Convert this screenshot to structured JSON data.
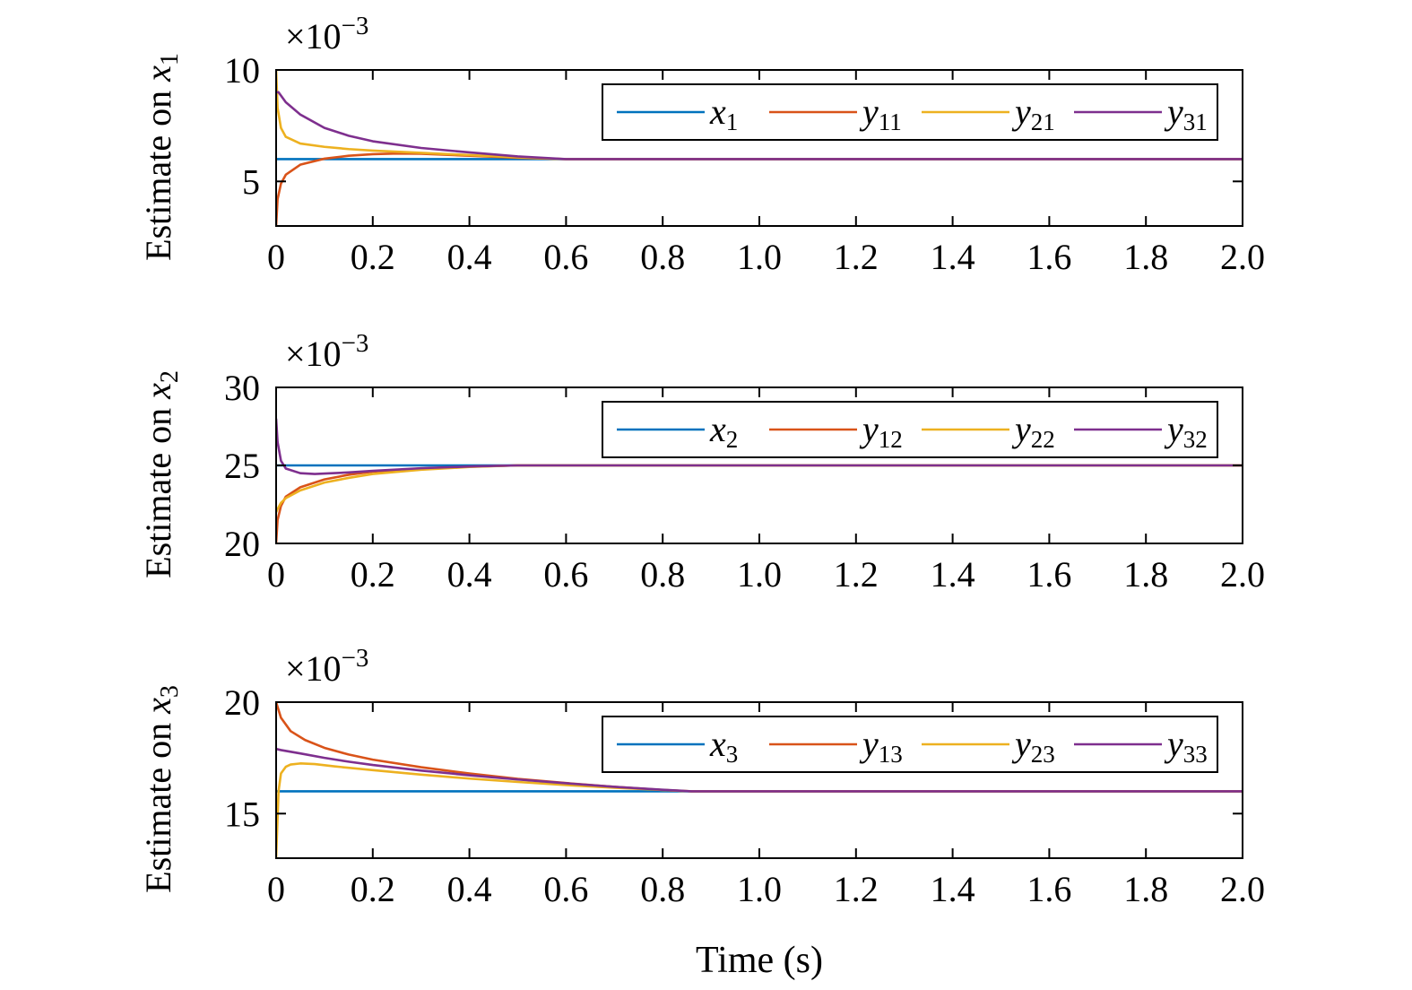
{
  "chart_data": [
    {
      "type": "line",
      "ylabel": "Estimate on",
      "ylabel_var": "x",
      "ylabel_sub": "1",
      "multiplier_base": "×10",
      "multiplier_exp": "−3",
      "xlim": [
        0,
        2.0
      ],
      "ylim": [
        3,
        10
      ],
      "xticks": [
        "0",
        "0.2",
        "0.4",
        "0.6",
        "0.8",
        "1.0",
        "1.2",
        "1.4",
        "1.6",
        "1.8",
        "2.0"
      ],
      "yticks": [
        {
          "value": 5,
          "label": "5"
        },
        {
          "value": 10,
          "label": "10"
        }
      ],
      "grid": false,
      "legend_position": "top-right",
      "series": [
        {
          "name": "x1",
          "var": "x",
          "sub": "1",
          "color": "#0072BD",
          "x": [
            0,
            0.01,
            2.0
          ],
          "y": [
            6,
            6,
            6
          ]
        },
        {
          "name": "y11",
          "var": "y",
          "sub": "11",
          "color": "#D95319",
          "x": [
            0,
            0.003,
            0.01,
            0.02,
            0.05,
            0.1,
            0.15,
            0.2,
            0.25,
            0.3,
            0.4,
            0.5,
            0.6,
            2.0
          ],
          "y": [
            3.0,
            4.2,
            4.9,
            5.3,
            5.75,
            6.02,
            6.15,
            6.22,
            6.25,
            6.24,
            6.15,
            6.06,
            6.0,
            6.0
          ]
        },
        {
          "name": "y21",
          "var": "y",
          "sub": "21",
          "color": "#EDB120",
          "x": [
            0,
            0.003,
            0.01,
            0.02,
            0.05,
            0.1,
            0.15,
            0.2,
            0.3,
            0.4,
            0.5,
            0.6,
            2.0
          ],
          "y": [
            10.0,
            8.3,
            7.4,
            7.0,
            6.7,
            6.55,
            6.45,
            6.38,
            6.28,
            6.18,
            6.08,
            6.0,
            6.0
          ]
        },
        {
          "name": "y31",
          "var": "y",
          "sub": "31",
          "color": "#7E2F8E",
          "x": [
            0,
            0.005,
            0.02,
            0.05,
            0.1,
            0.15,
            0.2,
            0.3,
            0.4,
            0.5,
            0.6,
            2.0
          ],
          "y": [
            9.0,
            9.0,
            8.55,
            8.0,
            7.4,
            7.05,
            6.8,
            6.5,
            6.3,
            6.12,
            6.0,
            6.0
          ]
        }
      ]
    },
    {
      "type": "line",
      "ylabel": "Estimate on",
      "ylabel_var": "x",
      "ylabel_sub": "2",
      "multiplier_base": "×10",
      "multiplier_exp": "−3",
      "xlim": [
        0,
        2.0
      ],
      "ylim": [
        20,
        30
      ],
      "xticks": [
        "0",
        "0.2",
        "0.4",
        "0.6",
        "0.8",
        "1.0",
        "1.2",
        "1.4",
        "1.6",
        "1.8",
        "2.0"
      ],
      "yticks": [
        {
          "value": 20,
          "label": "20"
        },
        {
          "value": 25,
          "label": "25"
        },
        {
          "value": 30,
          "label": "30"
        }
      ],
      "grid": false,
      "legend_position": "top-right",
      "series": [
        {
          "name": "x2",
          "var": "x",
          "sub": "2",
          "color": "#0072BD",
          "x": [
            0,
            0.01,
            2.0
          ],
          "y": [
            25,
            25,
            25
          ]
        },
        {
          "name": "y12",
          "var": "y",
          "sub": "12",
          "color": "#D95319",
          "x": [
            0,
            0.003,
            0.01,
            0.02,
            0.05,
            0.1,
            0.15,
            0.2,
            0.3,
            0.4,
            0.5,
            2.0
          ],
          "y": [
            20.0,
            21.5,
            22.4,
            23.0,
            23.6,
            24.1,
            24.4,
            24.6,
            24.8,
            24.92,
            25.0,
            25.0
          ]
        },
        {
          "name": "y22",
          "var": "y",
          "sub": "22",
          "color": "#EDB120",
          "x": [
            0,
            0.003,
            0.01,
            0.02,
            0.05,
            0.1,
            0.15,
            0.2,
            0.3,
            0.4,
            0.5,
            2.0
          ],
          "y": [
            22.0,
            22.2,
            22.6,
            22.9,
            23.4,
            23.9,
            24.2,
            24.45,
            24.72,
            24.9,
            25.0,
            25.0
          ]
        },
        {
          "name": "y32",
          "var": "y",
          "sub": "32",
          "color": "#7E2F8E",
          "x": [
            0,
            0.003,
            0.01,
            0.02,
            0.05,
            0.08,
            0.15,
            0.2,
            0.3,
            0.4,
            0.5,
            2.0
          ],
          "y": [
            28.0,
            26.5,
            25.3,
            24.8,
            24.5,
            24.45,
            24.55,
            24.65,
            24.82,
            24.93,
            25.0,
            25.0
          ]
        }
      ]
    },
    {
      "type": "line",
      "ylabel": "Estimate on",
      "ylabel_var": "x",
      "ylabel_sub": "3",
      "multiplier_base": "×10",
      "multiplier_exp": "−3",
      "xlim": [
        0,
        2.0
      ],
      "ylim": [
        13,
        20
      ],
      "xticks": [
        "0",
        "0.2",
        "0.4",
        "0.6",
        "0.8",
        "1.0",
        "1.2",
        "1.4",
        "1.6",
        "1.8",
        "2.0"
      ],
      "yticks": [
        {
          "value": 15,
          "label": "15"
        },
        {
          "value": 20,
          "label": "20"
        }
      ],
      "grid": false,
      "legend_position": "top-right",
      "series": [
        {
          "name": "x3",
          "var": "x",
          "sub": "3",
          "color": "#0072BD",
          "x": [
            0,
            0.01,
            2.0
          ],
          "y": [
            16,
            16,
            16
          ]
        },
        {
          "name": "y13",
          "var": "y",
          "sub": "13",
          "color": "#D95319",
          "x": [
            0,
            0.01,
            0.03,
            0.06,
            0.1,
            0.15,
            0.2,
            0.3,
            0.4,
            0.5,
            0.6,
            0.7,
            0.8,
            0.86,
            2.0
          ],
          "y": [
            20.0,
            19.3,
            18.7,
            18.3,
            17.95,
            17.65,
            17.42,
            17.08,
            16.8,
            16.56,
            16.37,
            16.2,
            16.06,
            16.0,
            16.0
          ]
        },
        {
          "name": "y23",
          "var": "y",
          "sub": "23",
          "color": "#EDB120",
          "x": [
            0,
            0.005,
            0.01,
            0.02,
            0.03,
            0.05,
            0.08,
            0.12,
            0.2,
            0.3,
            0.4,
            0.5,
            0.6,
            0.7,
            0.8,
            0.86,
            2.0
          ],
          "y": [
            13.0,
            16.0,
            16.8,
            17.1,
            17.2,
            17.25,
            17.22,
            17.12,
            16.95,
            16.75,
            16.57,
            16.42,
            16.28,
            16.16,
            16.06,
            16.0,
            16.0
          ]
        },
        {
          "name": "y33",
          "var": "y",
          "sub": "33",
          "color": "#7E2F8E",
          "x": [
            0,
            0.01,
            0.05,
            0.1,
            0.15,
            0.2,
            0.3,
            0.4,
            0.5,
            0.6,
            0.7,
            0.8,
            0.86,
            2.0
          ],
          "y": [
            17.9,
            17.85,
            17.7,
            17.5,
            17.33,
            17.18,
            16.93,
            16.72,
            16.53,
            16.36,
            16.2,
            16.07,
            16.0,
            16.0
          ]
        }
      ]
    }
  ],
  "xlabel": "Time (s)"
}
